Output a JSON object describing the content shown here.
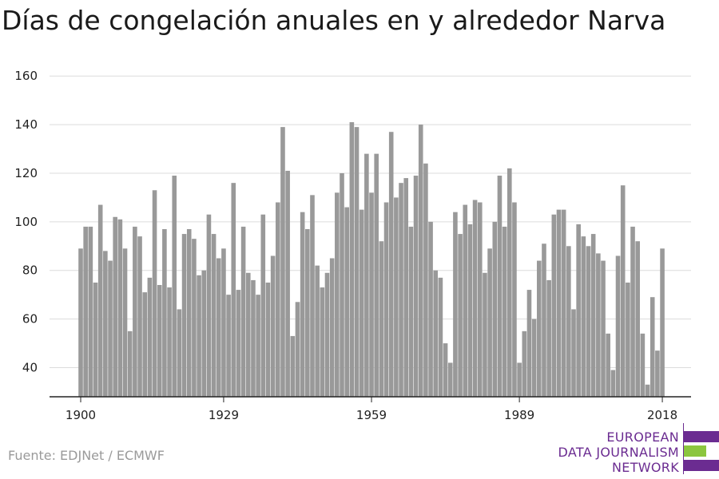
{
  "chart_data": {
    "type": "bar",
    "title": "Días de congelación anuales en y alrededor Narva",
    "xlabel": "",
    "ylabel": "",
    "x_start": 1900,
    "x_ticks": [
      1900,
      1929,
      1959,
      1989,
      2018
    ],
    "y_ticks": [
      40,
      60,
      80,
      100,
      120,
      140,
      160
    ],
    "ylim": [
      28,
      165
    ],
    "grid": true,
    "bar_color": "#999999",
    "values": [
      89,
      98,
      98,
      75,
      107,
      88,
      84,
      102,
      101,
      89,
      55,
      98,
      94,
      71,
      77,
      113,
      74,
      97,
      73,
      119,
      64,
      95,
      97,
      93,
      78,
      80,
      103,
      95,
      85,
      89,
      70,
      116,
      72,
      98,
      79,
      76,
      70,
      103,
      75,
      86,
      108,
      139,
      121,
      53,
      67,
      104,
      97,
      111,
      82,
      73,
      79,
      85,
      112,
      120,
      106,
      141,
      139,
      105,
      128,
      112,
      128,
      92,
      108,
      137,
      110,
      116,
      118,
      98,
      119,
      140,
      124,
      100,
      80,
      77,
      50,
      42,
      104,
      95,
      107,
      99,
      109,
      108,
      79,
      89,
      100,
      119,
      98,
      122,
      108,
      42,
      55,
      72,
      60,
      84,
      91,
      76,
      103,
      105,
      105,
      90,
      64,
      99,
      94,
      90,
      95,
      87,
      84,
      54,
      39,
      86,
      115,
      75,
      98,
      92,
      54,
      33,
      69,
      47,
      89
    ]
  },
  "footer": {
    "source": "Fuente: EDJNet / ECMWF"
  },
  "logo": {
    "line1": "EUROPEAN",
    "line2": "DATA JOURNALISM",
    "line3": "NETWORK",
    "primary_color": "#6b2c91",
    "accent_color": "#8cc63f"
  }
}
